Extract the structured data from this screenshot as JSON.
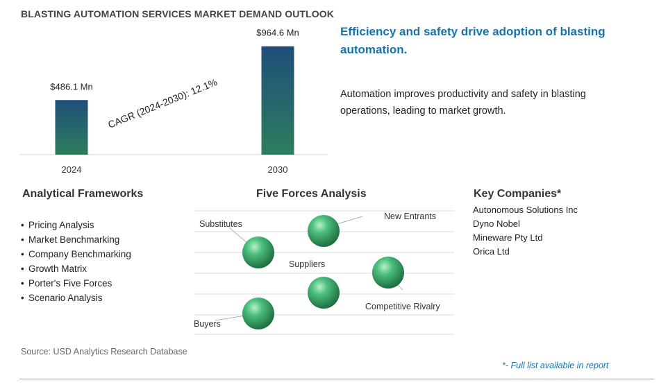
{
  "title": "BLASTING AUTOMATION SERVICES MARKET DEMAND OUTLOOK",
  "chart_data": {
    "type": "bar",
    "categories": [
      "2024",
      "2030"
    ],
    "values": [
      486.1,
      964.6
    ],
    "value_labels": [
      "$486.1 Mn",
      "$964.6 Mn"
    ],
    "ylim": [
      0,
      1000
    ],
    "grid": false,
    "annotation": "CAGR (2024-2030):  12.1%",
    "bar_gradient": [
      "#2e7d5f",
      "#1f4e79"
    ]
  },
  "headline": "Efficiency and safety drive adoption of blasting automation.",
  "description": "Automation improves productivity and safety in blasting operations, leading to market growth.",
  "frameworks": {
    "heading": "Analytical Frameworks",
    "items": [
      "Pricing Analysis",
      "Market Benchmarking",
      "Company Benchmarking",
      "Growth Matrix",
      "Porter's Five Forces",
      "Scenario Analysis"
    ]
  },
  "five_forces": {
    "heading": "Five Forces Analysis",
    "labels": {
      "substitutes": "Substitutes",
      "new_entrants": "New Entrants",
      "suppliers": "Suppliers",
      "competitive_rivalry": "Competitive Rivalry",
      "buyers": "Buyers"
    }
  },
  "companies": {
    "heading": "Key Companies*",
    "items": [
      "Autonomous Solutions Inc",
      "Dyno Nobel",
      "Mineware Pty Ltd",
      "Orica Ltd"
    ]
  },
  "source": "Source: USD Analytics Research Database",
  "footnote": "*- Full list available in report",
  "colors": {
    "accent": "#1a73a8",
    "sphere": "#3cae6e"
  }
}
